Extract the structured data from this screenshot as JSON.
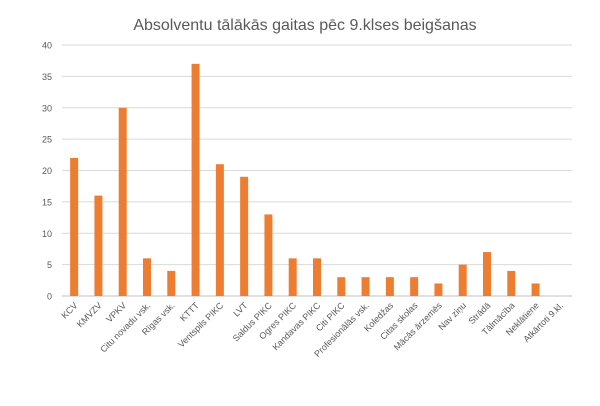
{
  "chart_data": {
    "type": "bar",
    "title": "Absolventu tālākās gaitas pēc 9.klses beigšanas",
    "xlabel": "",
    "ylabel": "",
    "ylim": [
      0,
      40
    ],
    "yticks": [
      0,
      5,
      10,
      15,
      20,
      25,
      30,
      35,
      40
    ],
    "grid": true,
    "legend": "none",
    "bar_color": "#ED7D31",
    "categories": [
      "KCV",
      "KMVZV",
      "VPKV",
      "Citu novadu vsk.",
      "Rīgas vsk.",
      "KTTT",
      "Ventspils PIKC",
      "LVT",
      "Saldus PIKC",
      "Ogres PIKC",
      "Kandavas PIKC",
      "Citi PIKC",
      "Profesionālās vsk.",
      "Koledžas",
      "Citas skolas",
      "Mācās ārzemēs",
      "Nav ziņu",
      "Strādā",
      "Tālmācība",
      "Neklātiene",
      "Atkārtoti 9.kl."
    ],
    "values": [
      22,
      16,
      30,
      6,
      4,
      37,
      21,
      19,
      13,
      6,
      6,
      3,
      3,
      3,
      3,
      2,
      5,
      7,
      4,
      2,
      0
    ]
  }
}
